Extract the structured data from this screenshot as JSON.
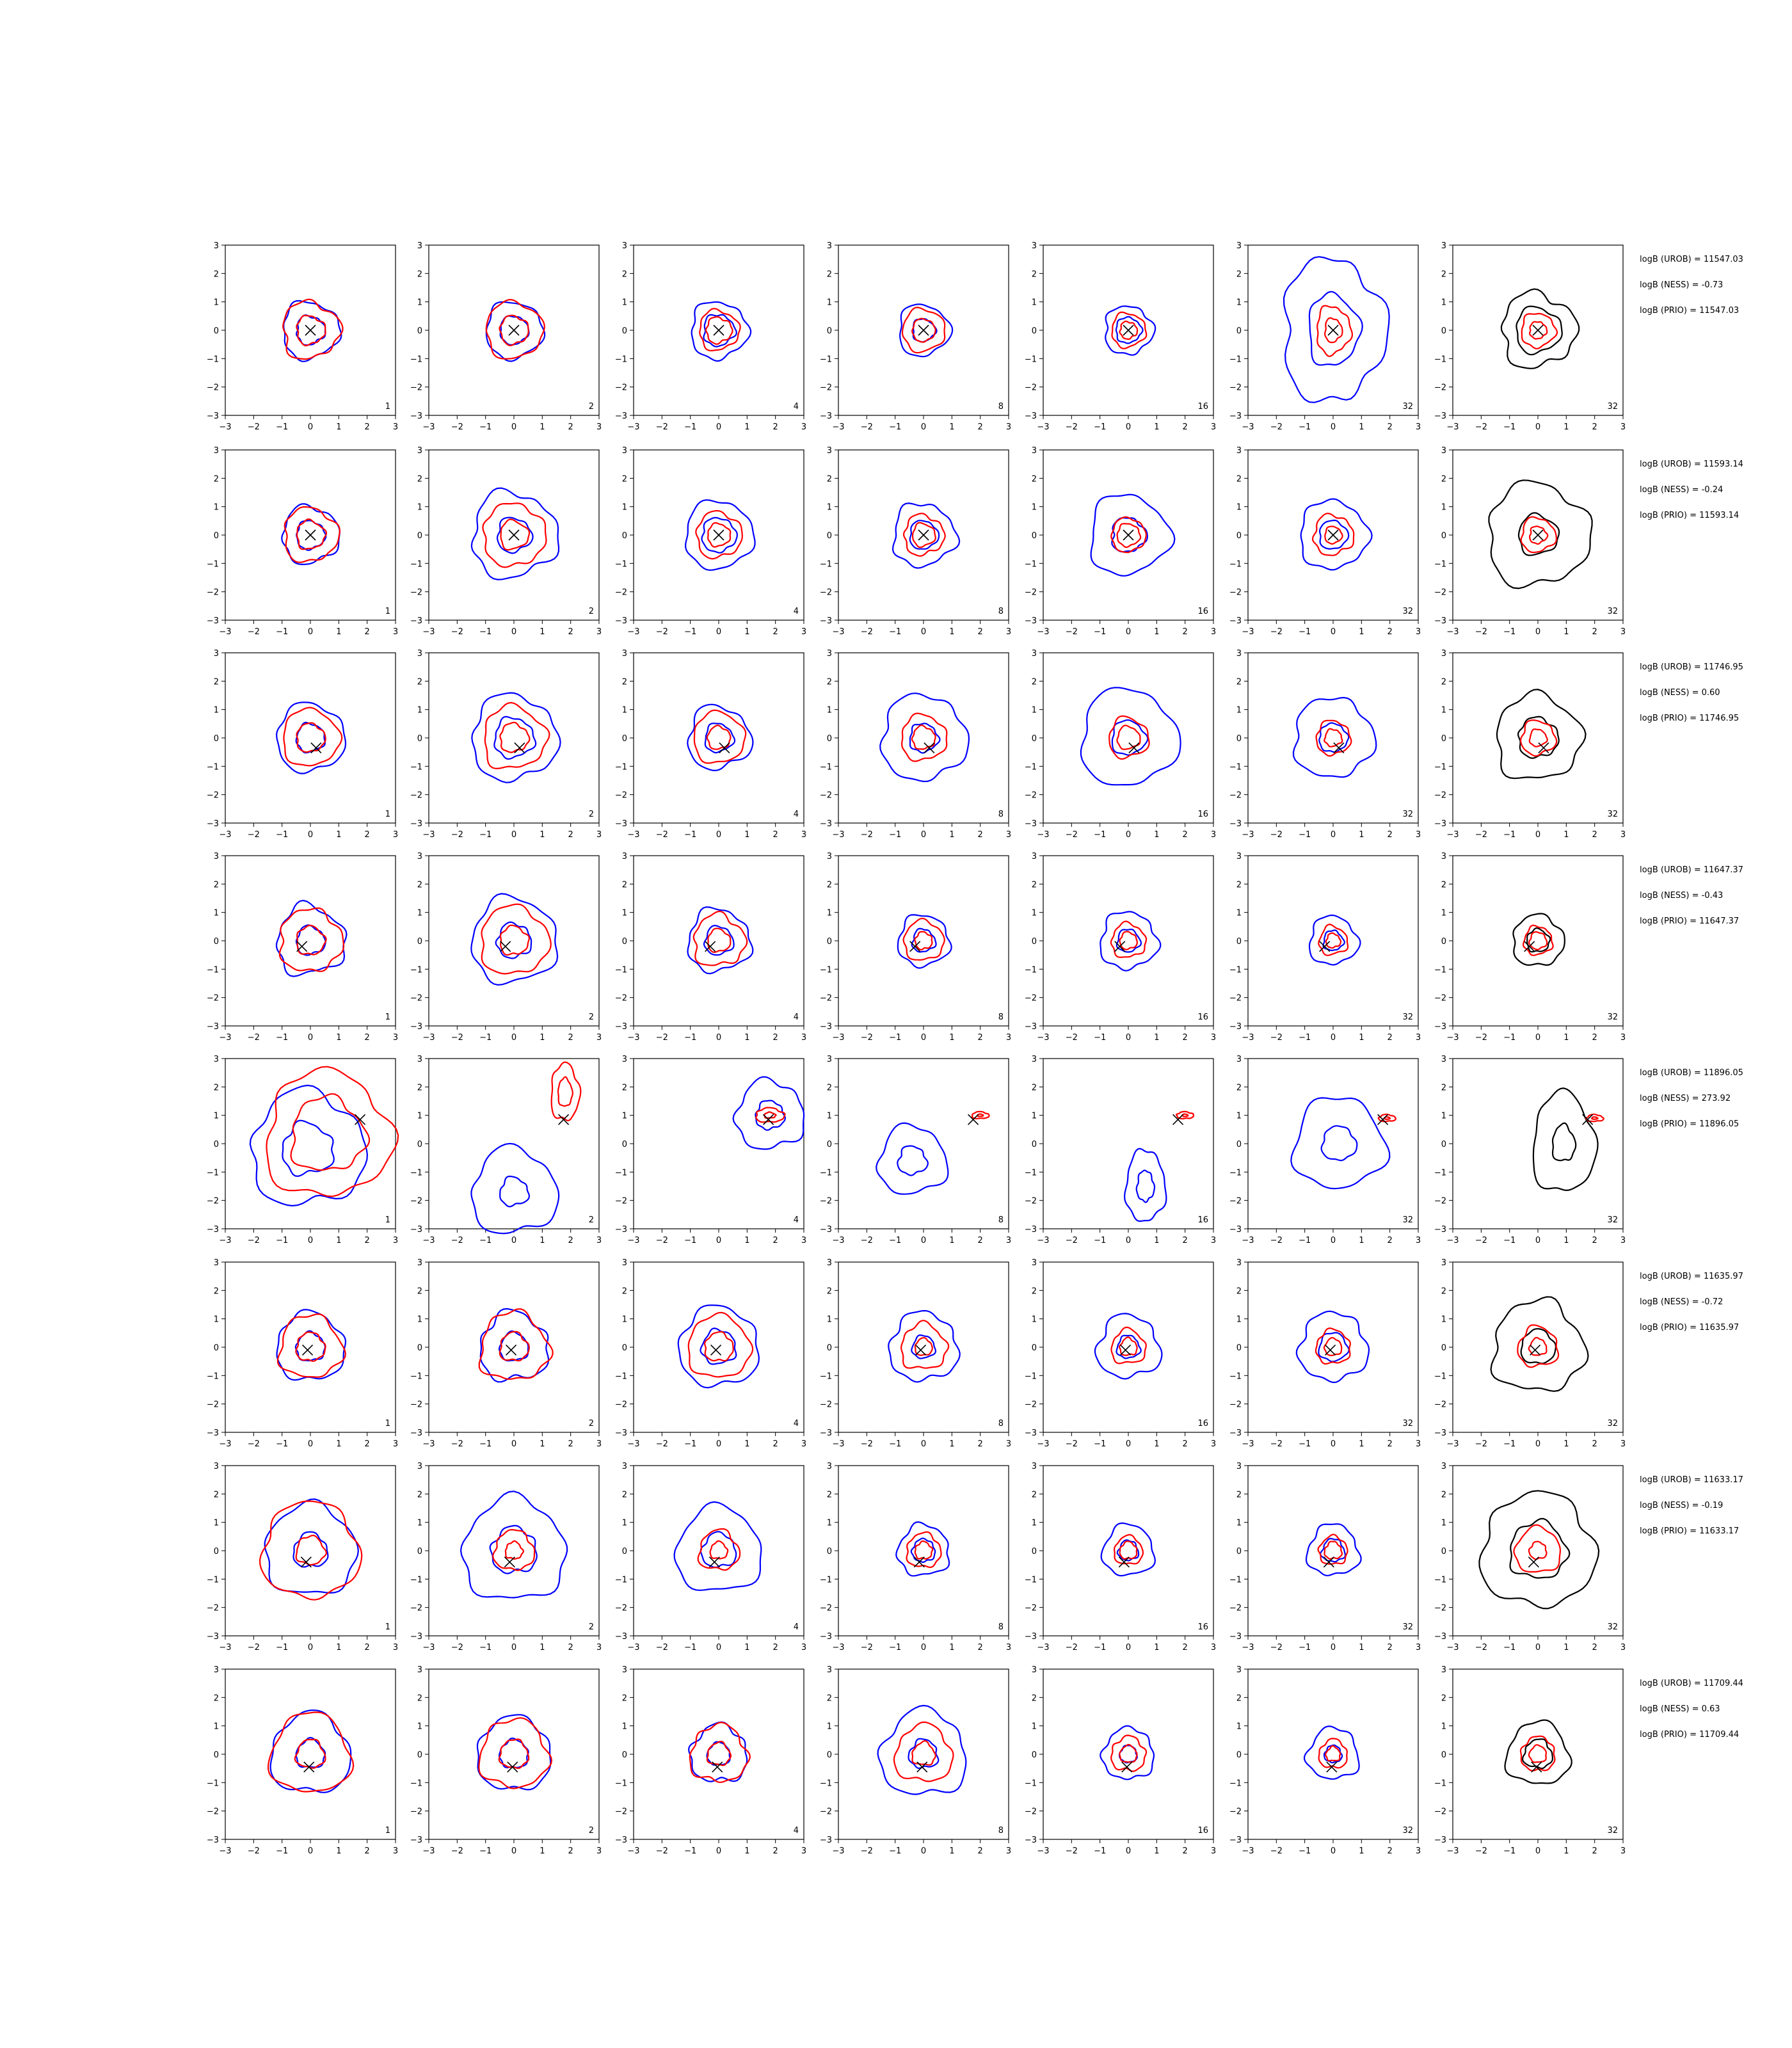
{
  "chart_data": {
    "type": "contour-grid",
    "axis": {
      "xlim": [
        -3,
        3
      ],
      "ylim": [
        -3,
        3
      ],
      "ticks": [
        -3,
        -2,
        -1,
        0,
        1,
        2,
        3
      ],
      "tick_labels": [
        "−3",
        "−2",
        "−1",
        "0",
        "1",
        "2",
        "3"
      ]
    },
    "column_labels": [
      "1",
      "2",
      "4",
      "8",
      "16",
      "32",
      "32"
    ],
    "colors": {
      "blue": "#0000ff",
      "red": "#ff0000",
      "black": "#000000"
    },
    "rows": [
      {
        "marker": [
          0.0,
          0.0
        ],
        "annotations": [
          "logB (UROB) = 11547.03",
          "logB (NESS) = -0.73",
          "logB (PRIO) = 11547.03"
        ],
        "panels": [
          {
            "blue": [
              0.5,
              1.0
            ],
            "red": [
              0.5,
              1.0
            ]
          },
          {
            "blue": [
              0.5,
              1.0
            ],
            "red": [
              0.5,
              1.0
            ]
          },
          {
            "blue": [
              0.55,
              1.0
            ],
            "red": [
              0.45,
              0.7
            ]
          },
          {
            "blue": [
              0.4,
              0.9
            ],
            "red": [
              0.4,
              0.75
            ]
          },
          {
            "blue": [
              0.45,
              0.85
            ],
            "red": [
              0.3,
              0.6
            ]
          },
          {
            "blue": [
              0.9,
              1.8
            ],
            "red": [
              0.3,
              0.6
            ],
            "elong": 1.4
          },
          {
            "black": [
              0.8,
              1.3
            ],
            "red": [
              0.3,
              0.6
            ]
          }
        ]
      },
      {
        "marker": [
          0.0,
          0.0
        ],
        "annotations": [
          "logB (UROB) = 11593.14",
          "logB (NESS) = -0.24",
          "logB (PRIO) = 11593.14"
        ],
        "panels": [
          {
            "blue": [
              0.5,
              1.0
            ],
            "red": [
              0.5,
              0.95
            ]
          },
          {
            "blue": [
              0.6,
              1.5
            ],
            "red": [
              0.5,
              1.1
            ]
          },
          {
            "blue": [
              0.6,
              1.2
            ],
            "red": [
              0.4,
              0.8
            ]
          },
          {
            "blue": [
              0.5,
              1.1
            ],
            "red": [
              0.4,
              0.7
            ]
          },
          {
            "blue": [
              0.6,
              1.4
            ],
            "red": [
              0.4,
              0.6
            ]
          },
          {
            "blue": [
              0.5,
              1.2
            ],
            "red": [
              0.3,
              0.7
            ]
          },
          {
            "black": [
              0.7,
              1.8
            ],
            "red": [
              0.3,
              0.6
            ]
          }
        ]
      },
      {
        "marker": [
          0.2,
          -0.35
        ],
        "annotations": [
          "logB (UROB) = 11746.95",
          "logB (NESS) = 0.60",
          "logB (PRIO) = 11746.95"
        ],
        "panels": [
          {
            "blue": [
              0.5,
              1.2
            ],
            "red": [
              0.5,
              1.0
            ]
          },
          {
            "blue": [
              0.7,
              1.5
            ],
            "red": [
              0.5,
              1.1
            ]
          },
          {
            "blue": [
              0.5,
              1.1
            ],
            "red": [
              0.4,
              0.9
            ]
          },
          {
            "blue": [
              0.5,
              1.5
            ],
            "red": [
              0.4,
              0.8
            ]
          },
          {
            "blue": [
              0.6,
              1.7
            ],
            "red": [
              0.4,
              0.7
            ]
          },
          {
            "blue": [
              0.5,
              1.4
            ],
            "red": [
              0.3,
              0.6
            ]
          },
          {
            "black": [
              0.7,
              1.5
            ],
            "red": [
              0.3,
              0.6
            ]
          }
        ]
      },
      {
        "marker": [
          -0.3,
          -0.2
        ],
        "annotations": [
          "logB (UROB) = 11647.37",
          "logB (NESS) = -0.43",
          "logB (PRIO) = 11647.37"
        ],
        "panels": [
          {
            "blue": [
              0.5,
              1.2
            ],
            "red": [
              0.5,
              1.1
            ]
          },
          {
            "blue": [
              0.6,
              1.5
            ],
            "red": [
              0.5,
              1.2
            ]
          },
          {
            "blue": [
              0.5,
              1.1
            ],
            "red": [
              0.4,
              0.9
            ]
          },
          {
            "blue": [
              0.4,
              0.9
            ],
            "red": [
              0.3,
              0.7
            ]
          },
          {
            "blue": [
              0.4,
              1.0
            ],
            "red": [
              0.3,
              0.6
            ]
          },
          {
            "blue": [
              0.35,
              0.85
            ],
            "red": [
              0.25,
              0.5
            ]
          },
          {
            "black": [
              0.4,
              0.9
            ],
            "red": [
              0.3,
              0.5
            ]
          }
        ]
      },
      {
        "marker": [
          1.75,
          0.85
        ],
        "annotations": [
          "logB (UROB) = 11896.05",
          "logB (NESS) = 273.92",
          "logB (PRIO) = 11896.05"
        ],
        "panels": [
          {
            "blue": [
              0.9,
              2.0
            ],
            "red": [
              1.3,
              2.2
            ],
            "red_center": [
              0.6,
              0.3
            ],
            "blue_center": [
              -0.1,
              -0.2
            ]
          },
          {
            "blue": [
              0.5,
              1.5
            ],
            "red": [
              0.25,
              0.5
            ],
            "red_center": [
              1.8,
              1.8
            ],
            "blue_center": [
              0.0,
              -1.7
            ],
            "red_elong": 2.0
          },
          {
            "blue": [
              0.5,
              1.2
            ],
            "red": [
              0.2,
              0.5
            ],
            "blue_center": [
              1.8,
              1.0
            ],
            "red_center": [
              1.8,
              1.0
            ],
            "red_elong": 0.5
          },
          {
            "blue": [
              0.5,
              1.2
            ],
            "red": [
              0.1,
              0.3
            ],
            "blue_center": [
              -0.4,
              -0.6
            ],
            "red_center": [
              2.0,
              1.0
            ],
            "red_elong": 0.4
          },
          {
            "blue": [
              0.3,
              0.7
            ],
            "red": [
              0.1,
              0.3
            ],
            "blue_center": [
              0.6,
              -1.5
            ],
            "red_center": [
              2.0,
              1.0
            ],
            "red_elong": 0.4,
            "blue_elong": 1.8
          },
          {
            "blue": [
              0.6,
              1.6
            ],
            "red": [
              0.1,
              0.3
            ],
            "blue_center": [
              0.2,
              0.0
            ],
            "red_center": [
              1.9,
              0.9
            ],
            "red_elong": 0.4
          },
          {
            "black": [
              0.4,
              1.1
            ],
            "red": [
              0.1,
              0.3
            ],
            "black_center": [
              0.9,
              0.0
            ],
            "red_center": [
              2.0,
              0.9
            ],
            "red_elong": 0.4,
            "black_elong": 1.6
          }
        ]
      },
      {
        "marker": [
          -0.1,
          -0.1
        ],
        "annotations": [
          "logB (UROB) = 11635.97",
          "logB (NESS) = -0.72",
          "logB (PRIO) = 11635.97"
        ],
        "panels": [
          {
            "blue": [
              0.5,
              1.2
            ],
            "red": [
              0.5,
              1.1
            ]
          },
          {
            "blue": [
              0.5,
              1.2
            ],
            "red": [
              0.5,
              1.2
            ]
          },
          {
            "blue": [
              0.6,
              1.4
            ],
            "red": [
              0.5,
              1.1
            ]
          },
          {
            "blue": [
              0.4,
              1.2
            ],
            "red": [
              0.3,
              0.8
            ]
          },
          {
            "blue": [
              0.4,
              1.1
            ],
            "red": [
              0.3,
              0.6
            ]
          },
          {
            "blue": [
              0.5,
              1.2
            ],
            "red": [
              0.3,
              0.6
            ]
          },
          {
            "black": [
              0.6,
              1.6
            ],
            "red": [
              0.3,
              0.7
            ]
          }
        ]
      },
      {
        "marker": [
          -0.15,
          -0.4
        ],
        "annotations": [
          "logB (UROB) = 11633.17",
          "logB (NESS) = -0.19",
          "logB (PRIO) = 11633.17"
        ],
        "panels": [
          {
            "blue": [
              0.6,
              1.6
            ],
            "red": [
              0.5,
              1.7
            ]
          },
          {
            "blue": [
              0.8,
              1.8
            ],
            "red": [
              0.3,
              0.7
            ]
          },
          {
            "blue": [
              0.6,
              1.5
            ],
            "red": [
              0.3,
              0.7
            ]
          },
          {
            "blue": [
              0.4,
              0.9
            ],
            "red": [
              0.3,
              0.6
            ]
          },
          {
            "blue": [
              0.35,
              0.9
            ],
            "red": [
              0.3,
              0.5
            ]
          },
          {
            "blue": [
              0.4,
              0.9
            ],
            "red": [
              0.3,
              0.5
            ]
          },
          {
            "black": [
              1.0,
              2.0
            ],
            "red": [
              0.3,
              0.8
            ]
          }
        ]
      },
      {
        "marker": [
          -0.05,
          -0.45
        ],
        "annotations": [
          "logB (UROB) = 11709.44",
          "logB (NESS) = 0.63",
          "logB (PRIO) = 11709.44"
        ],
        "panels": [
          {
            "blue": [
              0.5,
              1.4
            ],
            "red": [
              0.5,
              1.4
            ]
          },
          {
            "blue": [
              0.5,
              1.3
            ],
            "red": [
              0.5,
              1.2
            ]
          },
          {
            "blue": [
              0.4,
              1.0
            ],
            "red": [
              0.4,
              1.0
            ]
          },
          {
            "blue": [
              0.5,
              1.5
            ],
            "red": [
              0.4,
              1.0
            ]
          },
          {
            "blue": [
              0.3,
              0.9
            ],
            "red": [
              0.3,
              0.6
            ]
          },
          {
            "blue": [
              0.3,
              0.9
            ],
            "red": [
              0.25,
              0.5
            ]
          },
          {
            "black": [
              0.5,
              1.1
            ],
            "red": [
              0.3,
              0.6
            ]
          }
        ]
      }
    ]
  }
}
